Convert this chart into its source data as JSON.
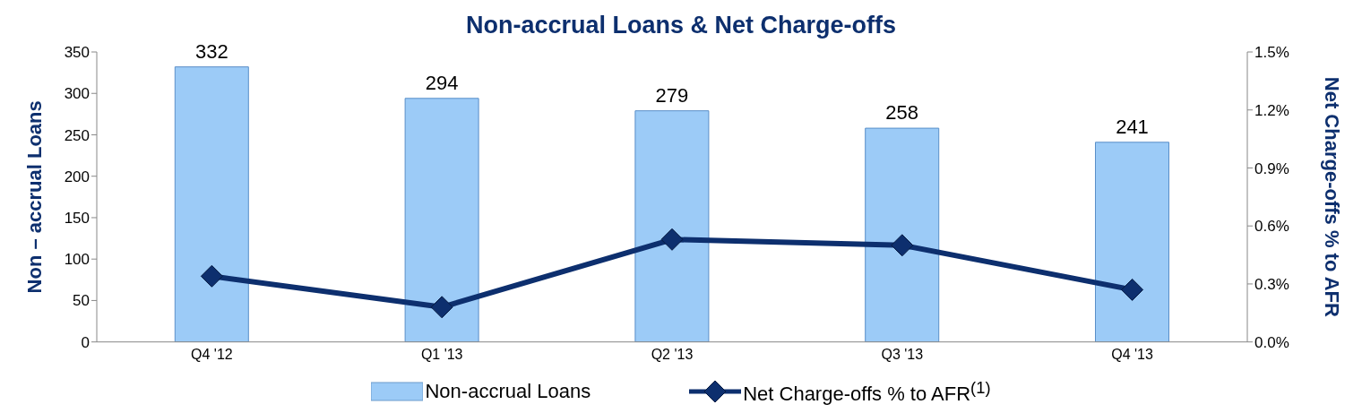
{
  "chart_data": {
    "type": "bar",
    "title": "Non-accrual Loans & Net Charge-offs",
    "ylabel": "Non – accrual Loans",
    "y2label": "Net Charge-offs % to AFR",
    "categories": [
      "Q4 '12",
      "Q1 '13",
      "Q2 '13",
      "Q3 '13",
      "Q4 '13"
    ],
    "series": [
      {
        "name": "Non-accrual Loans",
        "type": "bar",
        "color": "#9ccbf7",
        "values": [
          332,
          294,
          279,
          258,
          241
        ],
        "value_labels": [
          "332",
          "294",
          "279",
          "258",
          "241"
        ]
      },
      {
        "name": "Net Charge-offs % to AFR$^{(1)}$",
        "type": "line",
        "axis": "y2",
        "color": "#0d2f6e",
        "values": [
          0.34,
          0.18,
          0.53,
          0.5,
          0.27
        ],
        "marker": "diamond"
      }
    ],
    "ylim": [
      0,
      350
    ],
    "yticks": [
      0,
      50,
      100,
      150,
      200,
      250,
      300,
      350
    ],
    "y2lim": [
      0,
      1.5
    ],
    "y2ticks": [
      {
        "value": 0,
        "label": "0.0%"
      },
      {
        "value": 0.3,
        "label": "0.3%"
      },
      {
        "value": 0.6,
        "label": "0.6%"
      },
      {
        "value": 0.9,
        "label": "0.9%"
      },
      {
        "value": 1.2,
        "label": "1.2%"
      },
      {
        "value": 1.5,
        "label": "1.5%"
      }
    ],
    "grid": false,
    "legend": "bottom"
  }
}
